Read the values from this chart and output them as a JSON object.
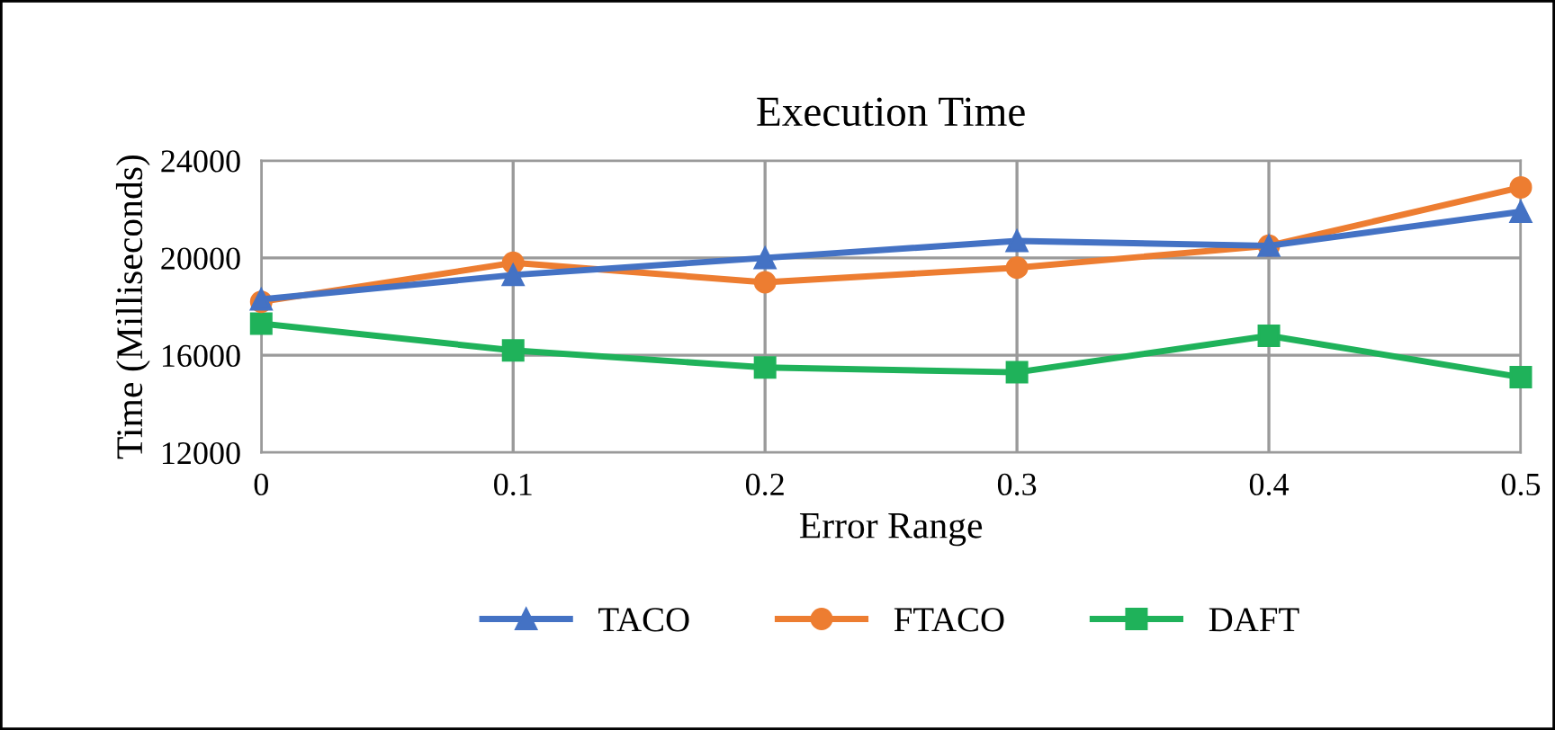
{
  "chart_data": {
    "type": "line",
    "title": "Execution Time",
    "xlabel": "Error Range",
    "ylabel": "Time (Milliseconds)",
    "x": [
      0,
      0.1,
      0.2,
      0.3,
      0.4,
      0.5
    ],
    "series": [
      {
        "name": "TACO",
        "color": "#4472c4",
        "marker": "triangle",
        "values": [
          18300,
          19300,
          20000,
          20700,
          20500,
          21900
        ]
      },
      {
        "name": "FTACO",
        "color": "#ed7d31",
        "marker": "circle",
        "values": [
          18200,
          19800,
          19000,
          19600,
          20500,
          22900
        ]
      },
      {
        "name": "DAFT",
        "color": "#1fb25a",
        "marker": "square",
        "values": [
          17300,
          16200,
          15500,
          15300,
          16800,
          15100
        ]
      }
    ],
    "xlim": [
      0,
      0.5
    ],
    "xticks": [
      0,
      0.1,
      0.2,
      0.3,
      0.4,
      0.5
    ],
    "ylim": [
      12000,
      24000
    ],
    "yticks": [
      12000,
      16000,
      20000,
      24000
    ],
    "grid": true,
    "legend": "bottom",
    "line_style": "solid"
  }
}
